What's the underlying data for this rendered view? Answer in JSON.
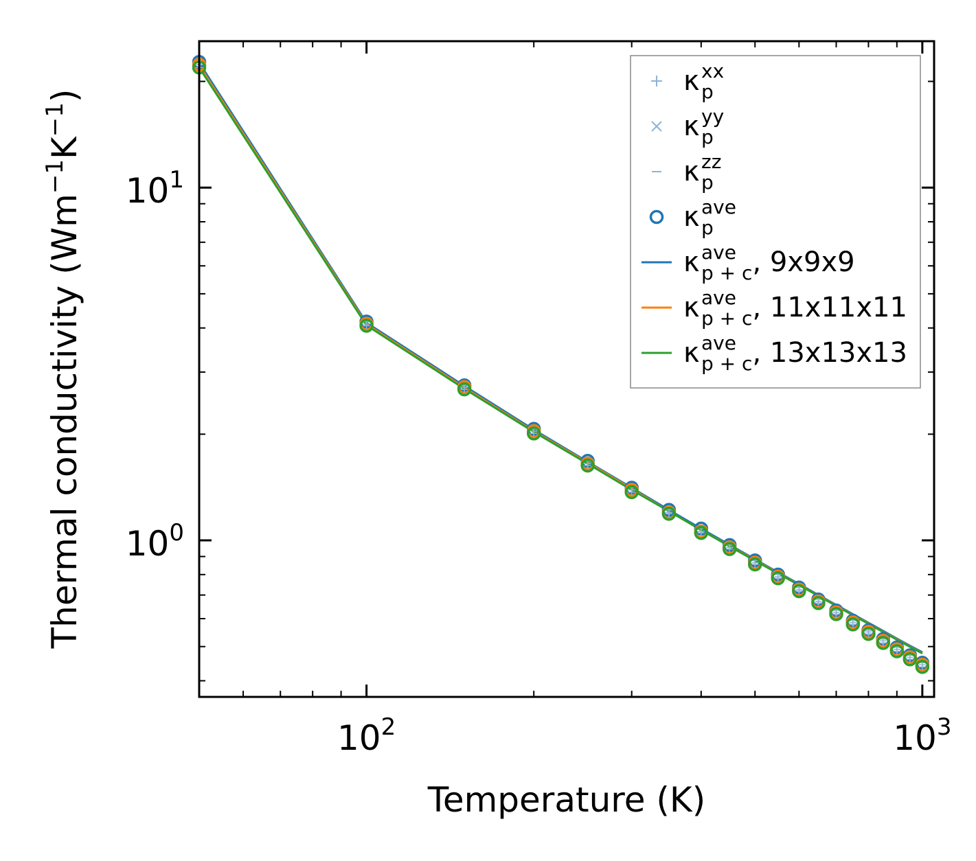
{
  "chart_data": {
    "type": "line",
    "xscale": "log",
    "yscale": "log",
    "xlabel": "Temperature (K)",
    "ylabel": {
      "base": "Thermal conductivity (Wm",
      "sup1": "−1",
      "mid": "K",
      "sup2": "−1",
      "end": ")"
    },
    "xlim": [
      50,
      1050
    ],
    "ylim": [
      0.36,
      26
    ],
    "x_ticks": [
      {
        "value": 100,
        "base": "10",
        "exp": "2"
      },
      {
        "value": 1000,
        "base": "10",
        "exp": "3"
      }
    ],
    "y_ticks": [
      {
        "value": 1,
        "base": "10",
        "exp": "0"
      },
      {
        "value": 10,
        "base": "10",
        "exp": "1"
      }
    ],
    "x": [
      50,
      100,
      150,
      200,
      250,
      300,
      350,
      400,
      450,
      500,
      550,
      600,
      650,
      700,
      750,
      800,
      850,
      900,
      950,
      1000
    ],
    "series": [
      {
        "name": "9x9x9",
        "color": "#1f77b4",
        "points": [
          22.7,
          4.17,
          2.75,
          2.07,
          1.68,
          1.41,
          1.22,
          1.08,
          0.97,
          0.877,
          0.8,
          0.735,
          0.68,
          0.633,
          0.592,
          0.556,
          0.525,
          0.497,
          0.472,
          0.45
        ],
        "line": [
          22.6,
          4.14,
          2.74,
          2.06,
          1.67,
          1.41,
          1.22,
          1.08,
          0.972,
          0.884,
          0.812,
          0.752,
          0.7,
          0.656,
          0.618,
          0.584,
          0.554,
          0.527,
          0.503,
          0.482
        ]
      },
      {
        "name": "11x11x11",
        "color": "#ff7f0e",
        "points": [
          22.3,
          4.11,
          2.72,
          2.04,
          1.65,
          1.39,
          1.2,
          1.06,
          0.955,
          0.864,
          0.789,
          0.725,
          0.671,
          0.625,
          0.585,
          0.55,
          0.519,
          0.491,
          0.466,
          0.444
        ],
        "line": [
          22.2,
          4.1,
          2.71,
          2.04,
          1.66,
          1.4,
          1.21,
          1.07,
          0.965,
          0.879,
          0.808,
          0.748,
          0.697,
          0.653,
          0.615,
          0.581,
          0.551,
          0.524,
          0.5,
          0.479
        ]
      },
      {
        "name": "13x13x13",
        "color": "#2ca02c",
        "points": [
          21.9,
          4.06,
          2.68,
          2.01,
          1.63,
          1.37,
          1.19,
          1.05,
          0.945,
          0.855,
          0.781,
          0.718,
          0.664,
          0.618,
          0.578,
          0.543,
          0.512,
          0.485,
          0.46,
          0.438
        ],
        "line": [
          21.9,
          4.07,
          2.69,
          2.03,
          1.65,
          1.39,
          1.21,
          1.07,
          0.962,
          0.876,
          0.806,
          0.747,
          0.696,
          0.652,
          0.614,
          0.58,
          0.55,
          0.523,
          0.499,
          0.478
        ]
      }
    ],
    "legend": {
      "placement": "top-right",
      "entries": [
        {
          "marker": "plus",
          "color": "#8fb3d3",
          "sym": "κ",
          "sup": "xx",
          "sub": "p",
          "suffix": ""
        },
        {
          "marker": "x",
          "color": "#8fb3d3",
          "sym": "κ",
          "sup": "yy",
          "sub": "p",
          "suffix": ""
        },
        {
          "marker": "dash",
          "color": "#8fb3d3",
          "sym": "κ",
          "sup": "zz",
          "sub": "p",
          "suffix": ""
        },
        {
          "marker": "circle",
          "color": "#1f77b4",
          "sym": "κ",
          "sup": "ave",
          "sub": "p",
          "suffix": ""
        },
        {
          "marker": "line",
          "color": "#1f77b4",
          "sym": "κ",
          "sup": "ave",
          "sub": "p + c",
          "suffix": ", 9x9x9"
        },
        {
          "marker": "line",
          "color": "#ff7f0e",
          "sym": "κ",
          "sup": "ave",
          "sub": "p + c",
          "suffix": ", 11x11x11"
        },
        {
          "marker": "line",
          "color": "#2ca02c",
          "sym": "κ",
          "sup": "ave",
          "sub": "p + c",
          "suffix": ", 13x13x13"
        }
      ]
    }
  }
}
